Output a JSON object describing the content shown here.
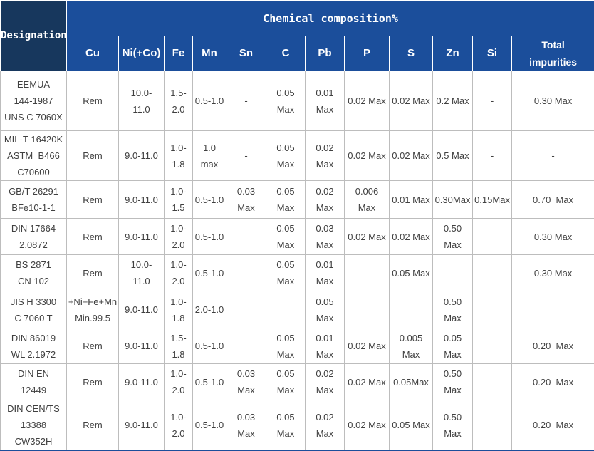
{
  "colors": {
    "header_blue": "#1B4E9B",
    "designation_navy": "#17375D",
    "border_gray": "#BDBDBD"
  },
  "header": {
    "designation": "Designation",
    "group_title": "Chemical composition%",
    "columns": [
      "Cu",
      "Ni(+Co)",
      "Fe",
      "Mn",
      "Sn",
      "C",
      "Pb",
      "P",
      "S",
      "Zn",
      "Si",
      "Total\nimpurities"
    ]
  },
  "rows": [
    {
      "designation": "EEMUA\n144-1987\nUNS C 7060X",
      "values": [
        "Rem",
        "10.0-\n11.0",
        "1.5-\n2.0",
        "0.5-1.0",
        "-",
        "0.05\nMax",
        "0.01\nMax",
        "0.02 Max",
        "0.02 Max",
        "0.2 Max",
        "-",
        "0.30 Max"
      ]
    },
    {
      "designation": "MIL-T-16420K\nASTM  B466\nC70600",
      "values": [
        "Rem",
        "9.0-11.0",
        "1.0-\n1.8",
        "1.0\nmax",
        "-",
        "0.05\nMax",
        "0.02\nMax",
        "0.02 Max",
        "0.02 Max",
        "0.5 Max",
        "-",
        "-"
      ]
    },
    {
      "designation": "GB/T 26291\nBFe10-1-1",
      "values": [
        "Rem",
        "9.0-11.0",
        "1.0-\n1.5",
        "0.5-1.0",
        "0.03\nMax",
        "0.05\nMax",
        "0.02\nMax",
        "0.006\nMax",
        "0.01 Max",
        "0.30Max",
        "0.15Max",
        "0.70  Max"
      ]
    },
    {
      "designation": "DIN 17664\n2.0872",
      "values": [
        "Rem",
        "9.0-11.0",
        "1.0-\n2.0",
        "0.5-1.0",
        "",
        "0.05\nMax",
        "0.03\nMax",
        "0.02 Max",
        "0.02 Max",
        "0.50\nMax",
        "",
        "0.30 Max"
      ]
    },
    {
      "designation": "BS 2871\nCN 102",
      "values": [
        "Rem",
        "10.0-\n11.0",
        "1.0-\n2.0",
        "0.5-1.0",
        "",
        "0.05\nMax",
        "0.01\nMax",
        "",
        "0.05 Max",
        "",
        "",
        "0.30 Max"
      ]
    },
    {
      "designation": "JIS H 3300\nC 7060 T",
      "values": [
        "+Ni+Fe+Mn\nMin.99.5",
        "9.0-11.0",
        "1.0-\n1.8",
        "2.0-1.0",
        "",
        "",
        "0.05\nMax",
        "",
        "",
        "0.50\nMax",
        "",
        ""
      ]
    },
    {
      "designation": "DIN 86019\nWL 2.1972",
      "values": [
        "Rem",
        "9.0-11.0",
        "1.5-\n1.8",
        "0.5-1.0",
        "",
        "0.05\nMax",
        "0.01\nMax",
        "0.02 Max",
        "0.005\nMax",
        "0.05\nMax",
        "",
        "0.20  Max"
      ]
    },
    {
      "designation": "DIN EN\n12449",
      "values": [
        "Rem",
        "9.0-11.0",
        "1.0-\n2.0",
        "0.5-1.0",
        "0.03\nMax",
        "0.05\nMax",
        "0.02\nMax",
        "0.02 Max",
        "0.05Max",
        "0.50\nMax",
        "",
        "0.20  Max"
      ]
    },
    {
      "designation": "DIN CEN/TS\n13388\nCW352H",
      "values": [
        "Rem",
        "9.0-11.0",
        "1.0-\n2.0",
        "0.5-1.0",
        "0.03\nMax",
        "0.05\nMax",
        "0.02\nMax",
        "0.02 Max",
        "0.05 Max",
        "0.50\nMax",
        "",
        "0.20  Max"
      ]
    }
  ]
}
